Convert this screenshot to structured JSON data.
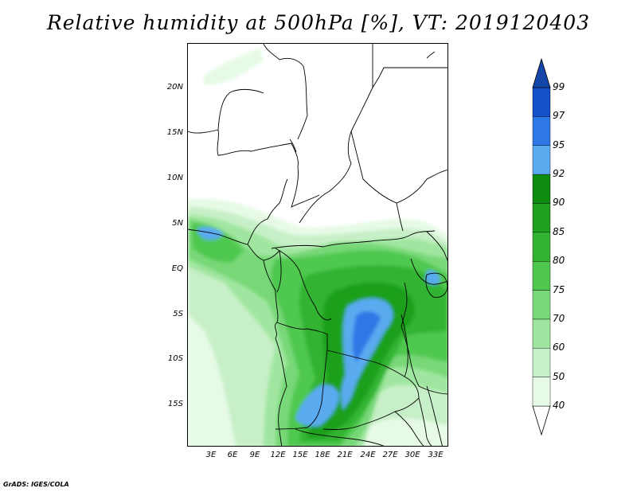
{
  "title": "Relative humidity at 500hPa [%], VT: 2019120403",
  "credit": "GrADS: IGES/COLA",
  "lat_ticks": [
    "20N",
    "15N",
    "10N",
    "5N",
    "EQ",
    "5S",
    "10S",
    "15S"
  ],
  "lon_ticks": [
    "3E",
    "6E",
    "9E",
    "12E",
    "15E",
    "18E",
    "21E",
    "24E",
    "27E",
    "30E",
    "33E"
  ],
  "colorbar": {
    "levels": [
      "40",
      "50",
      "60",
      "70",
      "75",
      "80",
      "85",
      "90",
      "92",
      "95",
      "97",
      "99"
    ],
    "colors": [
      "#ffffff",
      "#e6fae6",
      "#c8f0c8",
      "#a0e6a0",
      "#78d878",
      "#50c850",
      "#32b432",
      "#1fa01f",
      "#0f8c0f",
      "#5aaaf0",
      "#2d78e6",
      "#1450c8",
      "#1446aa"
    ]
  },
  "map": {
    "lon_range": [
      0,
      35
    ],
    "lat_range": [
      -19.5,
      24.5
    ],
    "background": "#ffffff",
    "border_color": "#000000"
  }
}
